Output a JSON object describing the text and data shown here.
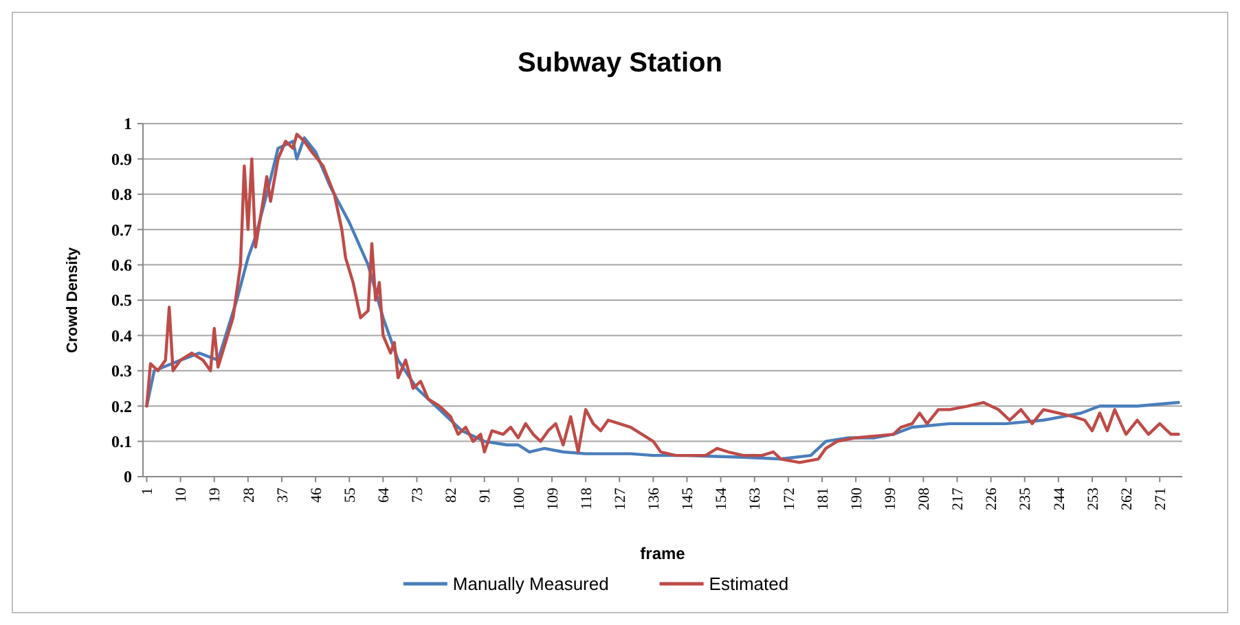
{
  "chart_data": {
    "type": "line",
    "title": "Subway Station",
    "xlabel": "frame",
    "ylabel": "Crowd Density",
    "xlim": [
      0,
      277
    ],
    "xticks": [
      1,
      10,
      19,
      28,
      37,
      46,
      55,
      64,
      73,
      82,
      91,
      100,
      109,
      118,
      127,
      136,
      145,
      154,
      163,
      172,
      181,
      190,
      199,
      208,
      217,
      226,
      235,
      244,
      253,
      262,
      271
    ],
    "ylim": [
      0,
      1
    ],
    "yticks": [
      0,
      0.1,
      0.2,
      0.3,
      0.4,
      0.5,
      0.6,
      0.7,
      0.8,
      0.9,
      1
    ],
    "grid": "y",
    "legend": "bottom",
    "marker": "none",
    "line_style": "solid",
    "series": [
      {
        "name": "Manually Measured",
        "color": "#4a7ebb",
        "x": [
          1,
          3,
          10,
          15,
          20,
          25,
          28,
          30,
          33,
          36,
          40,
          41,
          43,
          46,
          50,
          55,
          60,
          64,
          68,
          73,
          80,
          85,
          91,
          97,
          100,
          103,
          107,
          112,
          118,
          130,
          136,
          145,
          160,
          170,
          178,
          182,
          188,
          195,
          200,
          205,
          215,
          230,
          240,
          250,
          255,
          265,
          276
        ],
        "values": [
          0.2,
          0.3,
          0.33,
          0.35,
          0.33,
          0.5,
          0.62,
          0.68,
          0.8,
          0.93,
          0.95,
          0.9,
          0.96,
          0.92,
          0.82,
          0.72,
          0.6,
          0.45,
          0.33,
          0.25,
          0.18,
          0.13,
          0.1,
          0.09,
          0.09,
          0.07,
          0.08,
          0.07,
          0.065,
          0.065,
          0.06,
          0.06,
          0.055,
          0.05,
          0.06,
          0.1,
          0.11,
          0.11,
          0.12,
          0.14,
          0.15,
          0.15,
          0.16,
          0.18,
          0.2,
          0.2,
          0.21
        ]
      },
      {
        "name": "Estimated",
        "color": "#be4b48",
        "x": [
          1,
          2,
          4,
          6,
          7,
          8,
          10,
          13,
          16,
          18,
          19,
          20,
          22,
          24,
          26,
          27,
          28,
          29,
          30,
          32,
          33,
          34,
          36,
          38,
          40,
          41,
          43,
          45,
          48,
          51,
          53,
          54,
          56,
          58,
          60,
          61,
          62,
          63,
          64,
          66,
          67,
          68,
          70,
          72,
          74,
          76,
          79,
          82,
          84,
          86,
          88,
          90,
          91,
          93,
          96,
          98,
          100,
          102,
          104,
          106,
          108,
          110,
          112,
          114,
          116,
          118,
          120,
          122,
          124,
          127,
          130,
          133,
          136,
          138,
          142,
          150,
          153,
          156,
          160,
          165,
          168,
          170,
          175,
          180,
          182,
          185,
          190,
          200,
          202,
          205,
          207,
          209,
          212,
          215,
          220,
          224,
          228,
          231,
          234,
          237,
          240,
          244,
          248,
          251,
          253,
          255,
          257,
          259,
          262,
          265,
          268,
          271,
          274,
          276
        ],
        "values": [
          0.2,
          0.32,
          0.3,
          0.33,
          0.48,
          0.3,
          0.33,
          0.35,
          0.33,
          0.3,
          0.42,
          0.31,
          0.38,
          0.45,
          0.6,
          0.88,
          0.7,
          0.9,
          0.65,
          0.78,
          0.85,
          0.78,
          0.9,
          0.95,
          0.93,
          0.97,
          0.95,
          0.92,
          0.88,
          0.8,
          0.7,
          0.62,
          0.55,
          0.45,
          0.47,
          0.66,
          0.5,
          0.55,
          0.4,
          0.35,
          0.38,
          0.28,
          0.33,
          0.25,
          0.27,
          0.22,
          0.2,
          0.17,
          0.12,
          0.14,
          0.1,
          0.12,
          0.07,
          0.13,
          0.12,
          0.14,
          0.11,
          0.15,
          0.12,
          0.1,
          0.13,
          0.15,
          0.09,
          0.17,
          0.07,
          0.19,
          0.15,
          0.13,
          0.16,
          0.15,
          0.14,
          0.12,
          0.1,
          0.07,
          0.06,
          0.06,
          0.08,
          0.07,
          0.06,
          0.06,
          0.07,
          0.05,
          0.04,
          0.05,
          0.08,
          0.1,
          0.11,
          0.12,
          0.14,
          0.15,
          0.18,
          0.15,
          0.19,
          0.19,
          0.2,
          0.21,
          0.19,
          0.16,
          0.19,
          0.15,
          0.19,
          0.18,
          0.17,
          0.16,
          0.13,
          0.18,
          0.13,
          0.19,
          0.12,
          0.16,
          0.12,
          0.15,
          0.12,
          0.12
        ]
      }
    ]
  }
}
